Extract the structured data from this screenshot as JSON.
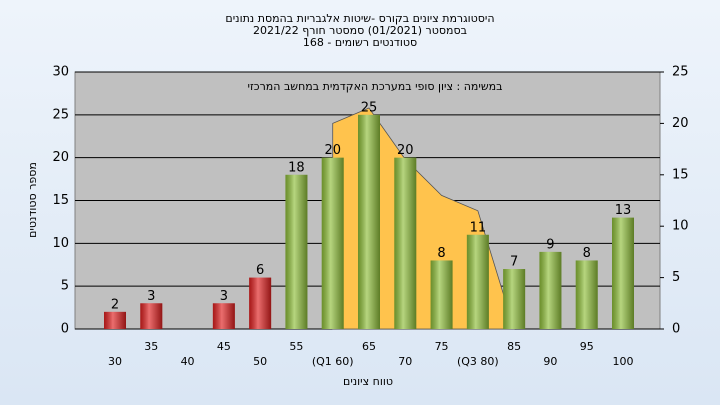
{
  "chart_data": {
    "type": "bar",
    "title": "היסטוגרמת ציונים בקורס -שיטות אלגבריות בהמסת נתונים",
    "subtitle": [
      "בסמסטר  (01/2021)  סמסטר חורף 2021/22",
      "סטודנטים רשומים - 168"
    ],
    "annotation": "במשימה : ציון סופי במערכת האקדמית במחשב המרכזי",
    "y_label": "מספר סטודנטים",
    "x_label": "טווח ציונים",
    "categories": [
      "30",
      "35",
      "40",
      "45",
      "50",
      "55",
      "(Q1 60)",
      "65",
      "70",
      "75",
      "(Q3 80)",
      "85",
      "90",
      "95",
      "100"
    ],
    "values": [
      2,
      3,
      null,
      3,
      6,
      18,
      20,
      25,
      20,
      8,
      11,
      7,
      9,
      8,
      13
    ],
    "colors": [
      "#e02020",
      "#e02020",
      "#e02020",
      "#e02020",
      "#e02020",
      "#8fbf3a",
      "#8fbf3a",
      "#8fbf3a",
      "#8fbf3a",
      "#8fbf3a",
      "#8fbf3a",
      "#8fbf3a",
      "#8fbf3a",
      "#8fbf3a",
      "#8fbf3a"
    ],
    "area": {
      "values": [
        null,
        null,
        null,
        null,
        null,
        null,
        20,
        21.5,
        16.5,
        13,
        11.5,
        0,
        null,
        null,
        null
      ],
      "color": "#ffc34d",
      "axis": "y2"
    },
    "ylim": [
      0,
      30
    ],
    "yticks": [
      0,
      5,
      10,
      15,
      20,
      25,
      30
    ],
    "y2lim": [
      0,
      25
    ],
    "y2ticks": [
      0,
      5,
      10,
      15,
      20,
      25
    ],
    "grid": true
  }
}
